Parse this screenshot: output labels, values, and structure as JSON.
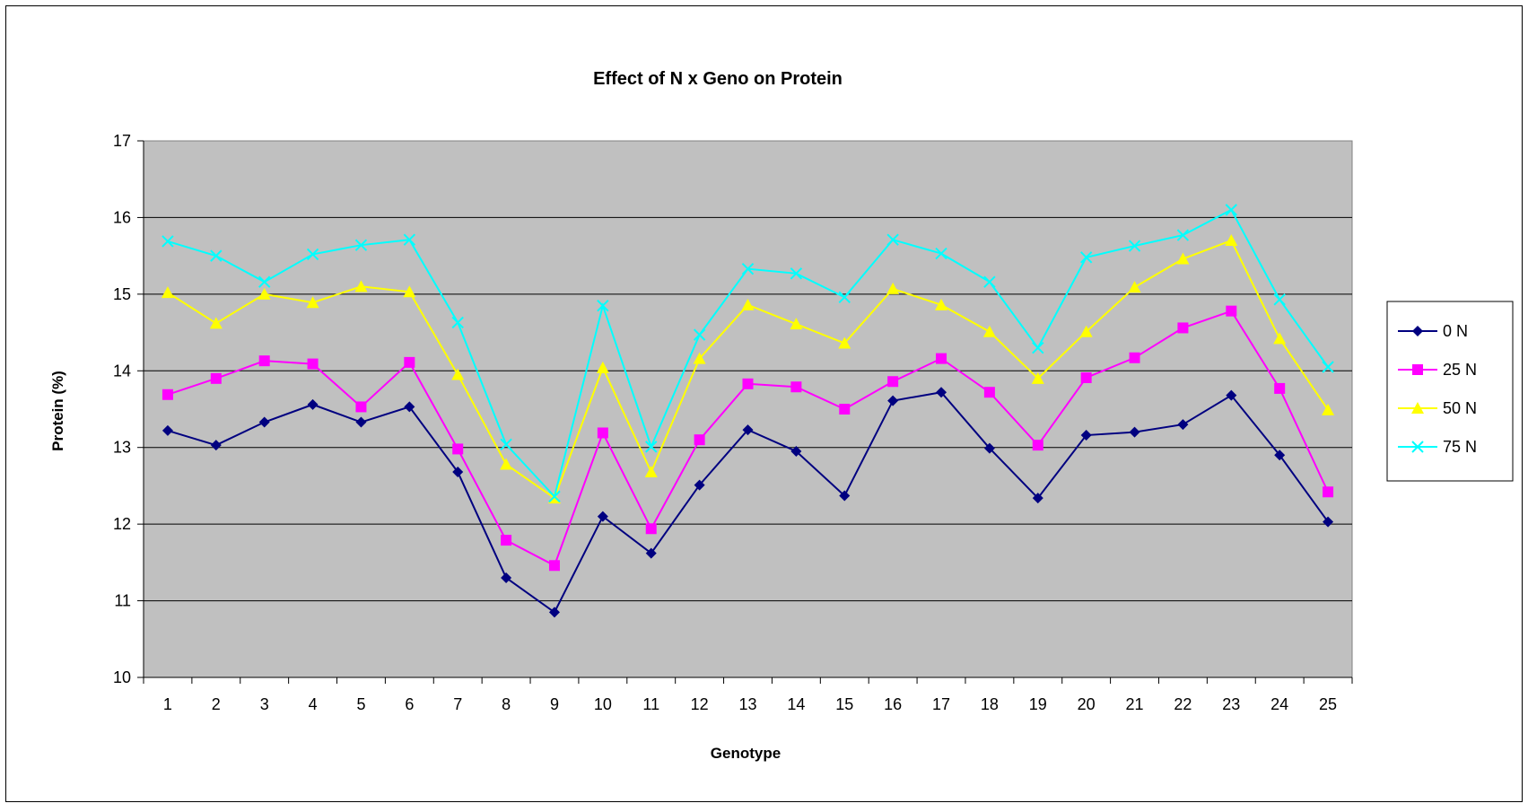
{
  "chart_data": {
    "type": "line",
    "title": "Effect of N x Geno on Protein",
    "xlabel": "Genotype",
    "ylabel": "Protein (%)",
    "x": [
      "1",
      "2",
      "3",
      "4",
      "5",
      "6",
      "7",
      "8",
      "9",
      "10",
      "11",
      "12",
      "13",
      "14",
      "15",
      "16",
      "17",
      "18",
      "19",
      "20",
      "21",
      "22",
      "23",
      "24",
      "25"
    ],
    "ylim": [
      10,
      17
    ],
    "yticks": [
      "10",
      "11",
      "12",
      "13",
      "14",
      "15",
      "16",
      "17"
    ],
    "grid": true,
    "legend_position": "right",
    "plot_background": "#c0c0c0",
    "series": [
      {
        "name": "0 N",
        "color": "#000080",
        "marker": "diamond",
        "values": [
          13.22,
          13.03,
          13.33,
          13.56,
          13.33,
          13.53,
          12.68,
          11.3,
          10.85,
          12.1,
          11.62,
          12.51,
          13.23,
          12.95,
          12.37,
          13.61,
          13.72,
          12.99,
          12.34,
          13.16,
          13.2,
          13.3,
          13.68,
          12.9,
          12.03
        ]
      },
      {
        "name": "25 N",
        "color": "#ff00ff",
        "marker": "square",
        "values": [
          13.69,
          13.9,
          14.13,
          14.09,
          13.53,
          14.11,
          12.98,
          11.79,
          11.46,
          13.19,
          11.94,
          13.1,
          13.83,
          13.79,
          13.5,
          13.86,
          14.16,
          13.72,
          13.03,
          13.91,
          14.17,
          14.56,
          14.78,
          13.77,
          12.42
        ]
      },
      {
        "name": "50 N",
        "color": "#ffff00",
        "marker": "triangle",
        "values": [
          15.02,
          14.62,
          15.0,
          14.89,
          15.1,
          15.03,
          13.95,
          12.78,
          12.34,
          14.04,
          12.68,
          14.16,
          14.86,
          14.61,
          14.36,
          15.07,
          14.86,
          14.51,
          13.9,
          14.51,
          15.09,
          15.46,
          15.7,
          14.42,
          13.49
        ]
      },
      {
        "name": "75 N",
        "color": "#00ffff",
        "marker": "x",
        "values": [
          15.69,
          15.5,
          15.16,
          15.52,
          15.64,
          15.71,
          14.63,
          13.04,
          12.36,
          14.85,
          13.01,
          14.47,
          15.33,
          15.27,
          14.96,
          15.71,
          15.53,
          15.16,
          14.3,
          15.48,
          15.63,
          15.77,
          16.1,
          14.93,
          14.05
        ]
      }
    ]
  }
}
